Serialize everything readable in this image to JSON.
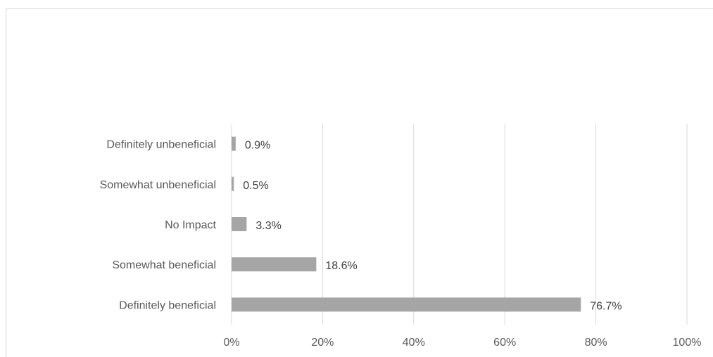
{
  "chart_data": {
    "type": "bar",
    "orientation": "horizontal",
    "categories": [
      "Definitely unbeneficial",
      "Somewhat unbeneficial",
      "No Impact",
      "Somewhat beneficial",
      "Definitely beneficial"
    ],
    "values": [
      0.9,
      0.5,
      3.3,
      18.6,
      76.7
    ],
    "value_labels": [
      "0.9%",
      "0.5%",
      "3.3%",
      "18.6%",
      "76.7%"
    ],
    "title": "",
    "xlabel": "",
    "ylabel": "",
    "xlim": [
      0,
      100
    ],
    "xticks": [
      "0%",
      "20%",
      "40%",
      "60%",
      "80%",
      "100%"
    ],
    "grid": true,
    "bar_color": "#a5a5a5",
    "grid_color": "#d9d9d9"
  }
}
